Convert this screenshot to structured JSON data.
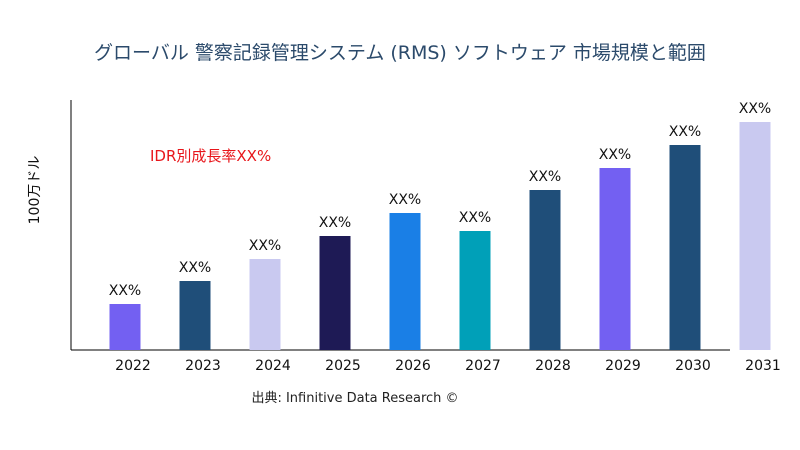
{
  "chart_data": {
    "type": "bar",
    "title": "グローバル 警察記録管理システム (RMS) ソフトウェア 市場規模と範囲",
    "xlabel": "",
    "ylabel": "100万ドル",
    "annotation": "IDR別成長率XX%",
    "source": "出典: Infinitive Data Research ©",
    "categories": [
      "2022",
      "2023",
      "2024",
      "2025",
      "2026",
      "2027",
      "2028",
      "2029",
      "2030",
      "2031"
    ],
    "values": [
      46,
      69,
      91,
      114,
      137,
      119,
      160,
      182,
      205,
      228
    ],
    "data_labels": [
      "XX%",
      "XX%",
      "XX%",
      "XX%",
      "XX%",
      "XX%",
      "XX%",
      "XX%",
      "XX%",
      "XX%"
    ],
    "colors": [
      "#7360f2",
      "#1f4e79",
      "#c9c9f0",
      "#1e1a55",
      "#1a7fe6",
      "#00a0b8",
      "#1f4e79",
      "#7360f2",
      "#1f4e79",
      "#c9c9f0"
    ],
    "ylim": [
      0,
      250
    ],
    "grid": false,
    "legend": "none"
  }
}
